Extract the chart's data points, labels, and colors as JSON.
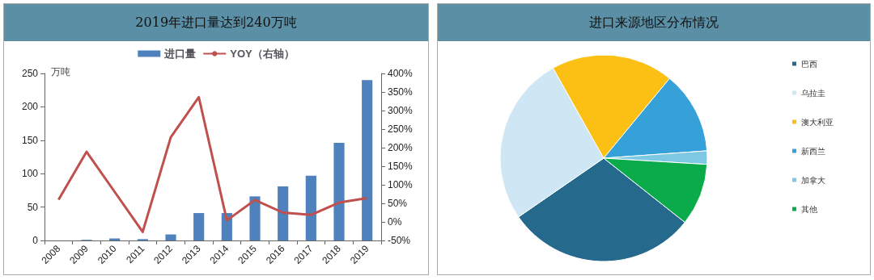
{
  "chart_data": [
    {
      "type": "bar",
      "title": "2019年进口量达到240万吨",
      "ylabel": "万吨",
      "categories": [
        "2008",
        "2009",
        "2010",
        "2011",
        "2012",
        "2013",
        "2014",
        "2015",
        "2016",
        "2017",
        "2018",
        "2019"
      ],
      "series": [
        {
          "name": "进口量",
          "type": "bar",
          "color": "#4f81bd",
          "values": [
            null,
            1,
            3,
            2,
            9,
            41,
            41,
            66,
            81,
            97,
            146,
            240
          ]
        },
        {
          "name": "YOY（右轴）",
          "type": "line",
          "axis": "y2",
          "color": "#c0504d",
          "values": [
            60,
            189,
            81,
            -27,
            228,
            336,
            4,
            59,
            25,
            19,
            52,
            64
          ]
        }
      ],
      "ylim": [
        0,
        250
      ],
      "yticks": [
        0,
        50,
        100,
        150,
        200,
        250
      ],
      "y2lim": [
        -50,
        400
      ],
      "y2ticks": [
        {
          "value": -50,
          "label": "-50%"
        },
        {
          "value": 0,
          "label": "0%"
        },
        {
          "value": 50,
          "label": "50%"
        },
        {
          "value": 100,
          "label": "100%"
        },
        {
          "value": 150,
          "label": "150%"
        },
        {
          "value": 200,
          "label": "200%"
        },
        {
          "value": 250,
          "label": "250%"
        },
        {
          "value": 300,
          "label": "300%"
        },
        {
          "value": 350,
          "label": "350%"
        },
        {
          "value": 400,
          "label": "400%"
        }
      ],
      "grid": false,
      "legend": "top",
      "marker": "none",
      "line_style": "solid"
    },
    {
      "type": "pie",
      "title": "进口来源地区分布情况",
      "categories": [
        "巴西",
        "乌拉圭",
        "澳大利亚",
        "新西兰",
        "加拿大",
        "其他"
      ],
      "values": [
        29.7,
        26.5,
        19.1,
        12.9,
        2.1,
        9.7
      ],
      "colors": [
        "#256a8c",
        "#cfe6f5",
        "#fcbf13",
        "#36a0d9",
        "#7ec8e3",
        "#0bab4c"
      ],
      "legend": "right"
    }
  ]
}
